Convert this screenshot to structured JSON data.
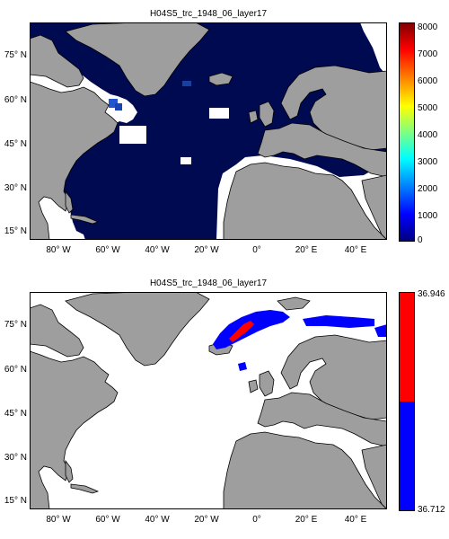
{
  "panels": [
    {
      "title": "H04S5_trc_1948_06_layer17",
      "colorbar": {
        "type": "jet",
        "ticks": [
          "8000",
          "7000",
          "6000",
          "5000",
          "4000",
          "3000",
          "2000",
          "1000",
          "0"
        ]
      },
      "y_ticks": [
        "75° N",
        "60° N",
        "45° N",
        "30° N",
        "15° N"
      ],
      "x_ticks": [
        "80° W",
        "60° W",
        "40° W",
        "20° W",
        "0°",
        "20° E",
        "40° E"
      ]
    },
    {
      "title": "H04S5_trc_1948_06_layer17",
      "colorbar": {
        "type": "two-class",
        "ticks": [
          "36.946",
          "36.712"
        ],
        "colors": [
          "#ff0000",
          "#0000ff"
        ]
      },
      "y_ticks": [
        "75° N",
        "60° N",
        "45° N",
        "30° N",
        "15° N"
      ],
      "x_ticks": [
        "80° W",
        "60° W",
        "40° W",
        "20° W",
        "0°",
        "20° E",
        "40° E"
      ]
    }
  ],
  "colors": {
    "land": "#9e9e9e",
    "ocean_data": "#000a50",
    "no_data": "#ffffff",
    "salinity_high": "#ff0000",
    "salinity_low": "#0000ff"
  }
}
